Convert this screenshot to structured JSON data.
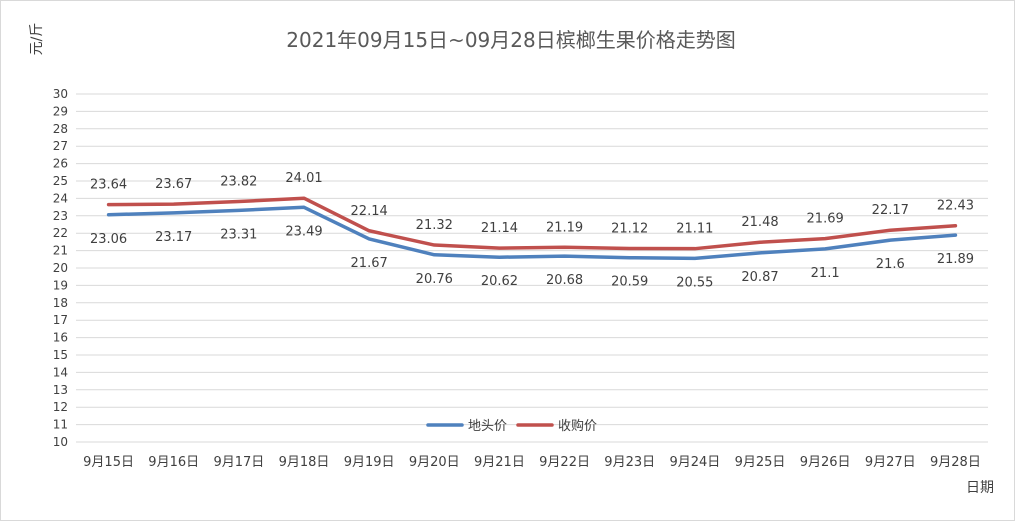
{
  "chart_data": {
    "type": "line",
    "title": "2021年09月15日~09月28日槟榔生果价格走势图",
    "ylabel": "元/斤",
    "xlabel": "日期",
    "ylim": [
      10,
      30
    ],
    "ytick_step": 1,
    "grid": true,
    "legend_position": "bottom-center",
    "categories": [
      "9月15日",
      "9月16日",
      "9月17日",
      "9月18日",
      "9月19日",
      "9月20日",
      "9月21日",
      "9月22日",
      "9月23日",
      "9月24日",
      "9月25日",
      "9月26日",
      "9月27日",
      "9月28日"
    ],
    "series": [
      {
        "name": "地头价",
        "color": "#4f81bd",
        "values": [
          23.06,
          23.17,
          23.31,
          23.49,
          21.67,
          20.76,
          20.62,
          20.68,
          20.59,
          20.55,
          20.87,
          21.1,
          21.6,
          21.89
        ],
        "labels": [
          "23.06",
          "23.17",
          "23.31",
          "23.49",
          "21.67",
          "20.76",
          "20.62",
          "20.68",
          "20.59",
          "20.55",
          "20.87",
          "21.1",
          "21.6",
          "21.89"
        ],
        "label_position": "below"
      },
      {
        "name": "收购价",
        "color": "#c0504d",
        "values": [
          23.64,
          23.67,
          23.82,
          24.01,
          22.14,
          21.32,
          21.14,
          21.19,
          21.12,
          21.11,
          21.48,
          21.69,
          22.17,
          22.43
        ],
        "labels": [
          "23.64",
          "23.67",
          "23.82",
          "24.01",
          "22.14",
          "21.32",
          "21.14",
          "21.19",
          "21.12",
          "21.11",
          "21.48",
          "21.69",
          "22.17",
          "22.43"
        ],
        "label_position": "above"
      }
    ]
  }
}
